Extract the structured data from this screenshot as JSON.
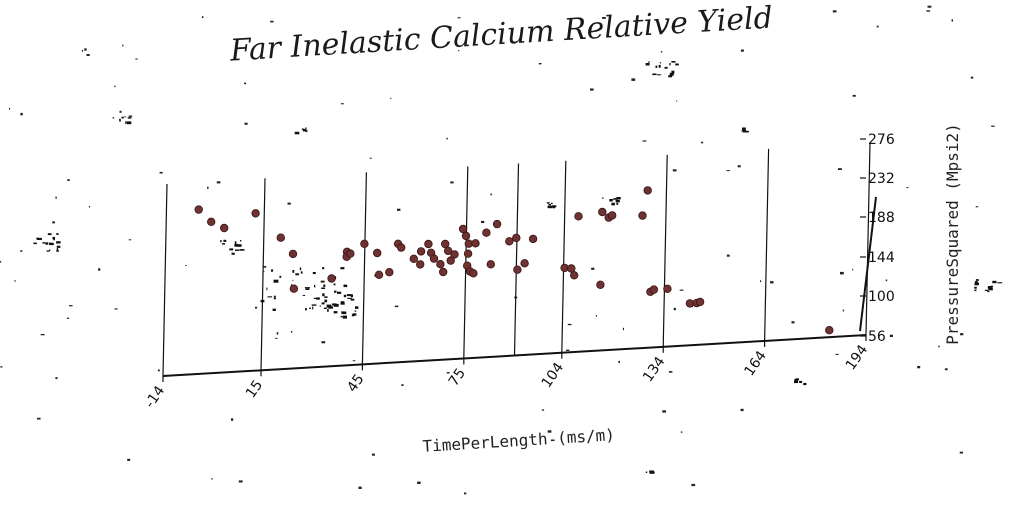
{
  "chart_data": {
    "type": "scatter",
    "title": "Far Inelastic Calcium Relative Yield",
    "xlabel": "TimePerLength (ms/m)",
    "ylabel": "PressureSquared (Mpsi2)",
    "x_ticks": [
      "-14",
      "15",
      "45",
      "75",
      "104",
      "134",
      "164",
      "194"
    ],
    "y_ticks": [
      "56",
      "100",
      "144",
      "188",
      "232",
      "276"
    ],
    "xlim": [
      -14,
      194
    ],
    "ylim": [
      56,
      276
    ],
    "grid": true,
    "marker_color": "#6e3232",
    "points": [
      {
        "x": -7,
        "y": 221
      },
      {
        "x": -3,
        "y": 208
      },
      {
        "x": 1,
        "y": 201
      },
      {
        "x": 10,
        "y": 214
      },
      {
        "x": 18,
        "y": 188
      },
      {
        "x": 22,
        "y": 171
      },
      {
        "x": 23,
        "y": 136
      },
      {
        "x": 34,
        "y": 144
      },
      {
        "x": 38,
        "y": 170
      },
      {
        "x": 38,
        "y": 165
      },
      {
        "x": 39,
        "y": 168
      },
      {
        "x": 43,
        "y": 177
      },
      {
        "x": 47,
        "y": 167
      },
      {
        "x": 48,
        "y": 145
      },
      {
        "x": 51,
        "y": 147
      },
      {
        "x": 53,
        "y": 175
      },
      {
        "x": 54,
        "y": 171
      },
      {
        "x": 58,
        "y": 159
      },
      {
        "x": 60,
        "y": 166
      },
      {
        "x": 60,
        "y": 153
      },
      {
        "x": 62,
        "y": 173
      },
      {
        "x": 63,
        "y": 164
      },
      {
        "x": 64,
        "y": 158
      },
      {
        "x": 66,
        "y": 152
      },
      {
        "x": 67,
        "y": 172
      },
      {
        "x": 67,
        "y": 144
      },
      {
        "x": 68,
        "y": 165
      },
      {
        "x": 69,
        "y": 155
      },
      {
        "x": 70,
        "y": 161
      },
      {
        "x": 72,
        "y": 186
      },
      {
        "x": 73,
        "y": 179
      },
      {
        "x": 74,
        "y": 161
      },
      {
        "x": 74,
        "y": 171
      },
      {
        "x": 74,
        "y": 149
      },
      {
        "x": 75,
        "y": 143
      },
      {
        "x": 76,
        "y": 141
      },
      {
        "x": 76,
        "y": 171
      },
      {
        "x": 79,
        "y": 181
      },
      {
        "x": 81,
        "y": 149
      },
      {
        "x": 82,
        "y": 189
      },
      {
        "x": 86,
        "y": 171
      },
      {
        "x": 88,
        "y": 174
      },
      {
        "x": 89,
        "y": 142
      },
      {
        "x": 91,
        "y": 148
      },
      {
        "x": 93,
        "y": 172
      },
      {
        "x": 103,
        "y": 141
      },
      {
        "x": 105,
        "y": 140
      },
      {
        "x": 106,
        "y": 133
      },
      {
        "x": 106,
        "y": 192
      },
      {
        "x": 113,
        "y": 195
      },
      {
        "x": 114,
        "y": 122
      },
      {
        "x": 115,
        "y": 189
      },
      {
        "x": 116,
        "y": 191
      },
      {
        "x": 125,
        "y": 189
      },
      {
        "x": 126,
        "y": 214
      },
      {
        "x": 129,
        "y": 112
      },
      {
        "x": 130,
        "y": 114
      },
      {
        "x": 134,
        "y": 114
      },
      {
        "x": 141,
        "y": 98
      },
      {
        "x": 143,
        "y": 98
      },
      {
        "x": 144,
        "y": 99
      },
      {
        "x": 183,
        "y": 63
      }
    ]
  }
}
